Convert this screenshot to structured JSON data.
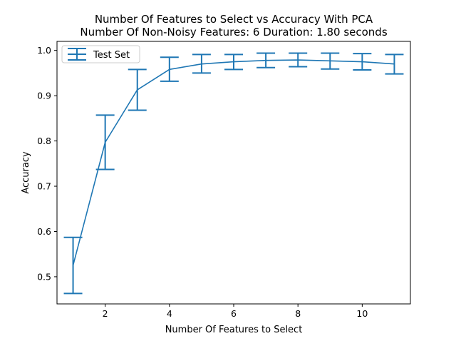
{
  "chart_data": {
    "type": "line",
    "title": "Number Of Features to Select vs Accuracy With PCA",
    "subtitle": "Number Of Non-Noisy Features: 6 Duration: 1.80 seconds",
    "xlabel": "Number Of Features to Select",
    "ylabel": "Accuracy",
    "xlim": [
      0.5,
      11.5
    ],
    "ylim": [
      0.44,
      1.02
    ],
    "xticks": [
      2,
      4,
      6,
      8,
      10
    ],
    "yticks": [
      0.5,
      0.6,
      0.7,
      0.8,
      0.9,
      1.0
    ],
    "ytick_labels": [
      "0.5",
      "0.6",
      "0.7",
      "0.8",
      "0.9",
      "1.0"
    ],
    "grid": false,
    "legend_position": "top-left",
    "series": [
      {
        "name": "Test Set",
        "color": "#1f77b4",
        "x": [
          1,
          2,
          3,
          4,
          5,
          6,
          7,
          8,
          9,
          10,
          11
        ],
        "y": [
          0.525,
          0.797,
          0.913,
          0.958,
          0.97,
          0.975,
          0.978,
          0.979,
          0.977,
          0.975,
          0.97
        ],
        "err_low": [
          0.463,
          0.737,
          0.868,
          0.932,
          0.95,
          0.958,
          0.962,
          0.964,
          0.959,
          0.957,
          0.948
        ],
        "err_high": [
          0.587,
          0.857,
          0.958,
          0.985,
          0.991,
          0.991,
          0.994,
          0.994,
          0.994,
          0.993,
          0.991
        ]
      }
    ]
  }
}
